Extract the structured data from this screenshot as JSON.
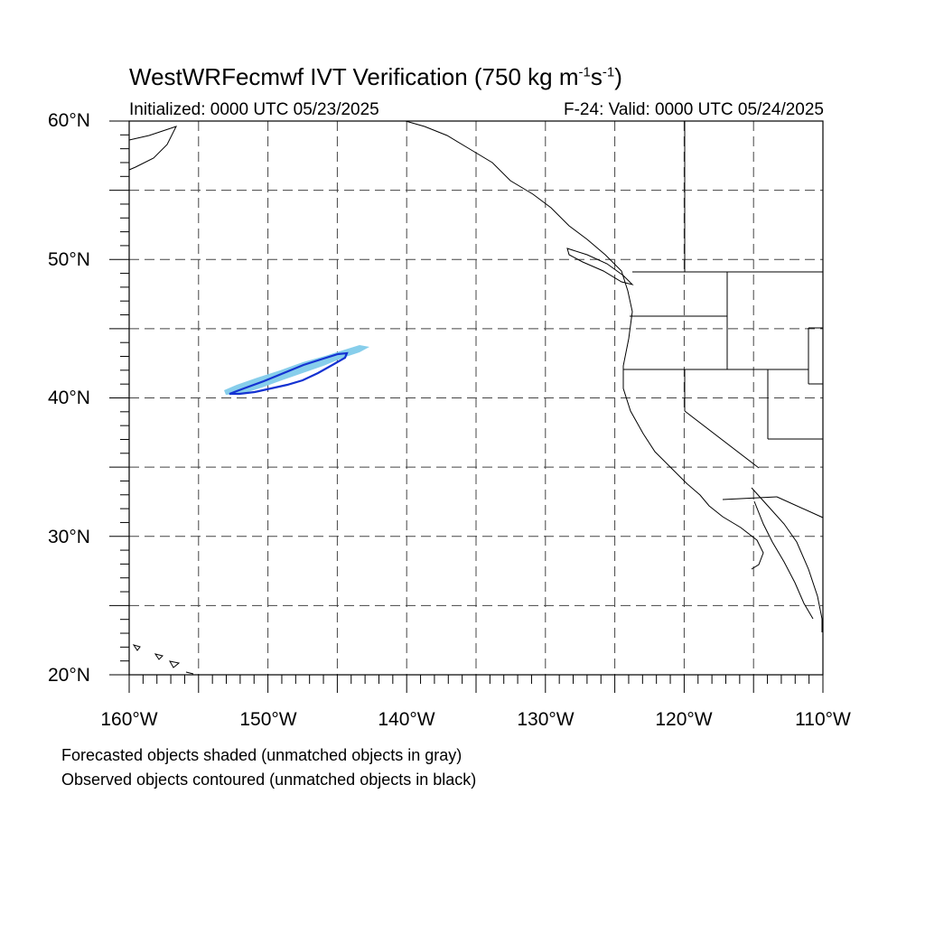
{
  "title": {
    "prefix": "WestWRFecmwf IVT Verification (750 kg m",
    "sup1": "-1",
    "middle": "s",
    "sup2": "-1",
    "suffix": ")"
  },
  "subtitle": {
    "initialized": "Initialized: 0000 UTC 05/23/2025",
    "valid": "F-24: Valid: 0000 UTC 05/24/2025"
  },
  "axes": {
    "lat_labels": [
      "60°N",
      "50°N",
      "40°N",
      "30°N",
      "20°N"
    ],
    "lon_labels": [
      "160°W",
      "150°W",
      "140°W",
      "130°W",
      "120°W",
      "110°W"
    ]
  },
  "map": {
    "lon_range": [
      -160,
      -110
    ],
    "lat_range": [
      20,
      60
    ],
    "grid_spacing_deg": 5,
    "forecast_color": "#87ceeb",
    "observed_color": "#1432d2"
  },
  "legend": {
    "forecast_note": "Forecasted objects shaded (unmatched objects in gray)",
    "observed_note": "Observed objects contoured (unmatched objects in black)"
  }
}
